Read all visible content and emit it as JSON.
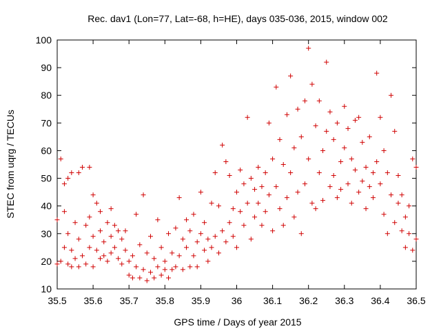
{
  "chart_data": {
    "type": "scatter",
    "title": "Rec. dav1 (Lon=77, Lat=-68, h=HE), days 035-036, 2015, window 002",
    "xlabel": "GPS time / Days of year 2015",
    "ylabel": "STEC from uqrg / TECUs",
    "xlim": [
      35.5,
      36.5
    ],
    "ylim": [
      10,
      100
    ],
    "xticks": [
      "35.5",
      "35.6",
      "35.7",
      "35.8",
      "35.9",
      "36",
      "36.1",
      "36.2",
      "36.3",
      "36.4",
      "36.5"
    ],
    "yticks": [
      "10",
      "20",
      "30",
      "40",
      "50",
      "60",
      "70",
      "80",
      "90",
      "100"
    ],
    "grid": false,
    "legend": "none",
    "marker": "+",
    "color": "#d00000",
    "series": [
      {
        "points": [
          [
            35.5,
            19
          ],
          [
            35.5,
            35
          ],
          [
            35.51,
            20
          ],
          [
            35.51,
            57
          ],
          [
            35.52,
            48
          ],
          [
            35.52,
            38
          ],
          [
            35.52,
            25
          ],
          [
            35.53,
            19
          ],
          [
            35.53,
            50
          ],
          [
            35.53,
            30
          ],
          [
            35.54,
            52
          ],
          [
            35.54,
            24
          ],
          [
            35.54,
            18
          ],
          [
            35.55,
            34
          ],
          [
            35.55,
            21
          ],
          [
            35.56,
            52
          ],
          [
            35.56,
            28
          ],
          [
            35.56,
            18
          ],
          [
            35.57,
            54
          ],
          [
            35.57,
            22
          ],
          [
            35.58,
            33
          ],
          [
            35.58,
            19
          ],
          [
            35.59,
            36
          ],
          [
            35.59,
            25
          ],
          [
            35.59,
            54
          ],
          [
            35.6,
            44
          ],
          [
            35.6,
            29
          ],
          [
            35.6,
            18
          ],
          [
            35.61,
            41
          ],
          [
            35.61,
            24
          ],
          [
            35.62,
            38
          ],
          [
            35.62,
            31
          ],
          [
            35.62,
            21
          ],
          [
            35.63,
            27
          ],
          [
            35.63,
            22
          ],
          [
            35.64,
            34
          ],
          [
            35.64,
            20
          ],
          [
            35.65,
            39
          ],
          [
            35.65,
            29
          ],
          [
            35.65,
            23
          ],
          [
            35.66,
            33
          ],
          [
            35.66,
            25
          ],
          [
            35.67,
            31
          ],
          [
            35.67,
            21
          ],
          [
            35.68,
            28
          ],
          [
            35.68,
            19
          ],
          [
            35.69,
            24
          ],
          [
            35.69,
            31
          ],
          [
            35.7,
            20
          ],
          [
            35.7,
            15
          ],
          [
            35.71,
            22
          ],
          [
            35.71,
            14
          ],
          [
            35.72,
            37
          ],
          [
            35.72,
            18
          ],
          [
            35.73,
            14
          ],
          [
            35.73,
            26
          ],
          [
            35.74,
            44
          ],
          [
            35.74,
            17
          ],
          [
            35.75,
            13
          ],
          [
            35.75,
            23
          ],
          [
            35.76,
            16
          ],
          [
            35.76,
            29
          ],
          [
            35.77,
            14
          ],
          [
            35.77,
            21
          ],
          [
            35.78,
            18
          ],
          [
            35.78,
            35
          ],
          [
            35.79,
            15
          ],
          [
            35.79,
            25
          ],
          [
            35.8,
            17
          ],
          [
            35.8,
            20
          ],
          [
            35.81,
            14
          ],
          [
            35.81,
            30
          ],
          [
            35.82,
            23
          ],
          [
            35.82,
            17
          ],
          [
            35.83,
            32
          ],
          [
            35.83,
            18
          ],
          [
            35.84,
            43
          ],
          [
            35.84,
            22
          ],
          [
            35.85,
            28
          ],
          [
            35.85,
            17
          ],
          [
            35.86,
            35
          ],
          [
            35.86,
            25
          ],
          [
            35.87,
            18
          ],
          [
            35.87,
            31
          ],
          [
            35.88,
            22
          ],
          [
            35.88,
            37
          ],
          [
            35.89,
            27
          ],
          [
            35.89,
            18
          ],
          [
            35.9,
            45
          ],
          [
            35.9,
            30
          ],
          [
            35.91,
            24
          ],
          [
            35.91,
            34
          ],
          [
            35.92,
            28
          ],
          [
            35.92,
            20
          ],
          [
            35.93,
            41
          ],
          [
            35.93,
            25
          ],
          [
            35.94,
            52
          ],
          [
            35.94,
            29
          ],
          [
            35.95,
            40
          ],
          [
            35.95,
            23
          ],
          [
            35.96,
            62
          ],
          [
            35.96,
            31
          ],
          [
            35.97,
            56
          ],
          [
            35.97,
            27
          ],
          [
            35.98,
            51
          ],
          [
            35.98,
            34
          ],
          [
            35.99,
            29
          ],
          [
            35.99,
            39
          ],
          [
            36.0,
            45
          ],
          [
            36.0,
            25
          ],
          [
            36.01,
            53
          ],
          [
            36.01,
            38
          ],
          [
            36.02,
            48
          ],
          [
            36.02,
            33
          ],
          [
            36.03,
            72
          ],
          [
            36.03,
            41
          ],
          [
            36.04,
            50
          ],
          [
            36.04,
            28
          ],
          [
            36.05,
            36
          ],
          [
            36.05,
            46
          ],
          [
            36.06,
            54
          ],
          [
            36.06,
            41
          ],
          [
            36.07,
            33
          ],
          [
            36.07,
            47
          ],
          [
            36.08,
            52
          ],
          [
            36.08,
            38
          ],
          [
            36.09,
            70
          ],
          [
            36.09,
            44
          ],
          [
            36.1,
            57
          ],
          [
            36.1,
            31
          ],
          [
            36.11,
            83
          ],
          [
            36.11,
            47
          ],
          [
            36.12,
            64
          ],
          [
            36.12,
            39
          ],
          [
            36.13,
            55
          ],
          [
            36.13,
            33
          ],
          [
            36.14,
            73
          ],
          [
            36.14,
            43
          ],
          [
            36.15,
            87
          ],
          [
            36.15,
            52
          ],
          [
            36.16,
            61
          ],
          [
            36.16,
            36
          ],
          [
            36.17,
            75
          ],
          [
            36.17,
            45
          ],
          [
            36.18,
            65
          ],
          [
            36.18,
            30
          ],
          [
            36.19,
            78
          ],
          [
            36.19,
            48
          ],
          [
            36.2,
            97
          ],
          [
            36.2,
            57
          ],
          [
            36.21,
            84
          ],
          [
            36.21,
            41
          ],
          [
            36.22,
            69
          ],
          [
            36.22,
            39
          ],
          [
            36.23,
            78
          ],
          [
            36.23,
            52
          ],
          [
            36.24,
            60
          ],
          [
            36.24,
            42
          ],
          [
            36.25,
            92
          ],
          [
            36.25,
            67
          ],
          [
            36.26,
            74
          ],
          [
            36.26,
            47
          ],
          [
            36.27,
            64
          ],
          [
            36.27,
            51
          ],
          [
            36.28,
            70
          ],
          [
            36.28,
            43
          ],
          [
            36.29,
            56
          ],
          [
            36.29,
            46
          ],
          [
            36.3,
            76
          ],
          [
            36.3,
            61
          ],
          [
            36.31,
            68
          ],
          [
            36.31,
            48
          ],
          [
            36.32,
            57
          ],
          [
            36.32,
            41
          ],
          [
            36.33,
            71
          ],
          [
            36.33,
            53
          ],
          [
            36.34,
            72
          ],
          [
            36.34,
            45
          ],
          [
            36.35,
            63
          ],
          [
            36.35,
            49
          ],
          [
            36.36,
            54
          ],
          [
            36.36,
            39
          ],
          [
            36.37,
            65
          ],
          [
            36.37,
            47
          ],
          [
            36.38,
            52
          ],
          [
            36.38,
            43
          ],
          [
            36.39,
            88
          ],
          [
            36.39,
            56
          ],
          [
            36.4,
            72
          ],
          [
            36.4,
            48
          ],
          [
            36.41,
            60
          ],
          [
            36.41,
            37
          ],
          [
            36.42,
            52
          ],
          [
            36.42,
            30
          ],
          [
            36.43,
            80
          ],
          [
            36.43,
            44
          ],
          [
            36.44,
            67
          ],
          [
            36.44,
            34
          ],
          [
            36.45,
            51
          ],
          [
            36.45,
            41
          ],
          [
            36.46,
            44
          ],
          [
            36.46,
            31
          ],
          [
            36.47,
            36
          ],
          [
            36.47,
            25
          ],
          [
            36.48,
            30
          ],
          [
            36.48,
            40
          ],
          [
            36.49,
            57
          ],
          [
            36.49,
            24
          ],
          [
            36.5,
            54
          ],
          [
            36.5,
            28
          ]
        ]
      }
    ]
  }
}
